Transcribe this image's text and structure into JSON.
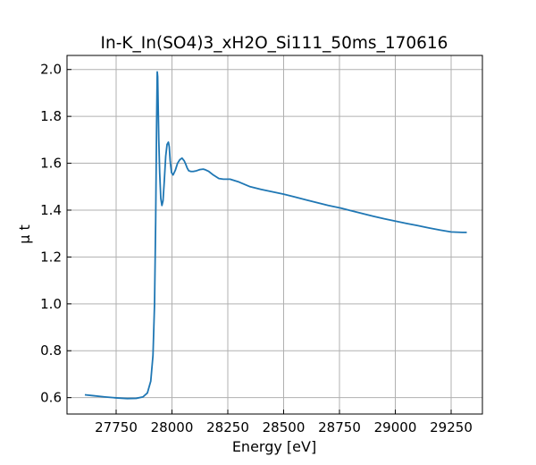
{
  "chart_data": {
    "type": "line",
    "title": "In-K_In(SO4)3_xH2O_Si111_50ms_170616",
    "xlabel": "Energy [eV]",
    "ylabel": "μ t",
    "xlim": [
      27530,
      29390
    ],
    "ylim": [
      0.53,
      2.06
    ],
    "xticks": [
      27750,
      28000,
      28250,
      28500,
      28750,
      29000,
      29250
    ],
    "yticks": [
      0.6,
      0.8,
      1.0,
      1.2,
      1.4,
      1.6,
      1.8,
      2.0
    ],
    "ytick_labels": [
      "0.6",
      "0.8",
      "1.0",
      "1.2",
      "1.4",
      "1.6",
      "1.8",
      "2.0"
    ],
    "grid": true,
    "series": [
      {
        "color": "#1f77b4",
        "x": [
          27610,
          27650,
          27700,
          27750,
          27800,
          27840,
          27870,
          27890,
          27905,
          27915,
          27922,
          27927,
          27931,
          27934,
          27936,
          27938,
          27941,
          27945,
          27950,
          27955,
          27960,
          27966,
          27972,
          27978,
          27984,
          27988,
          27992,
          27998,
          28005,
          28015,
          28025,
          28035,
          28045,
          28055,
          28062,
          28068,
          28075,
          28085,
          28095,
          28110,
          28125,
          28140,
          28150,
          28165,
          28185,
          28210,
          28230,
          28260,
          28300,
          28350,
          28400,
          28450,
          28500,
          28550,
          28600,
          28650,
          28700,
          28750,
          28800,
          28850,
          28900,
          28950,
          29000,
          29050,
          29100,
          29150,
          29200,
          29250,
          29300,
          29320
        ],
        "y": [
          0.612,
          0.608,
          0.603,
          0.599,
          0.596,
          0.597,
          0.603,
          0.62,
          0.67,
          0.78,
          1.0,
          1.35,
          1.75,
          1.99,
          1.97,
          1.86,
          1.7,
          1.56,
          1.45,
          1.42,
          1.44,
          1.53,
          1.63,
          1.68,
          1.69,
          1.67,
          1.61,
          1.56,
          1.55,
          1.57,
          1.6,
          1.615,
          1.622,
          1.61,
          1.595,
          1.58,
          1.568,
          1.565,
          1.565,
          1.568,
          1.573,
          1.575,
          1.572,
          1.565,
          1.55,
          1.535,
          1.532,
          1.532,
          1.52,
          1.5,
          1.488,
          1.478,
          1.468,
          1.456,
          1.444,
          1.432,
          1.42,
          1.41,
          1.398,
          1.386,
          1.374,
          1.363,
          1.353,
          1.343,
          1.334,
          1.324,
          1.315,
          1.307,
          1.305,
          1.305
        ]
      }
    ]
  }
}
